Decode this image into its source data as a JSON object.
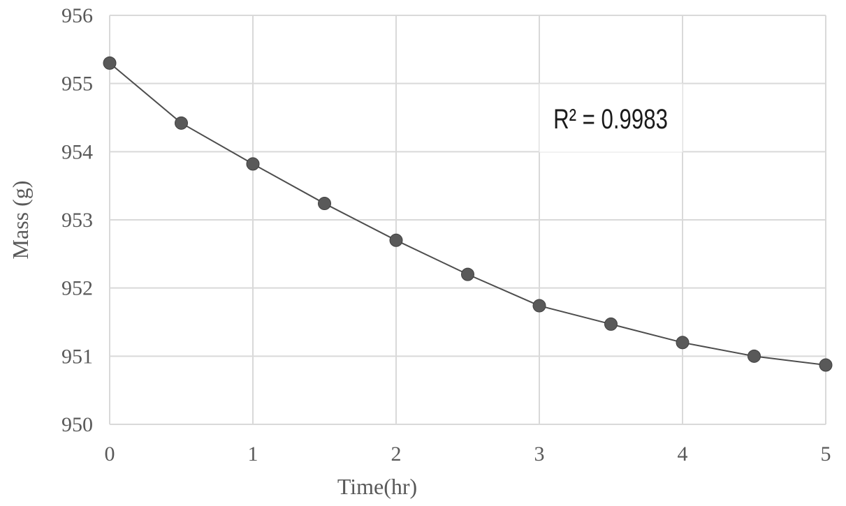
{
  "chart_data": {
    "type": "line",
    "xlabel": "Time(hr)",
    "ylabel": "Mass (g)",
    "xlim": [
      0,
      5
    ],
    "ylim": [
      950,
      956
    ],
    "x_ticks": [
      "0",
      "1",
      "2",
      "3",
      "4",
      "5"
    ],
    "y_ticks": [
      "950",
      "951",
      "952",
      "953",
      "954",
      "955",
      "956"
    ],
    "grid": true,
    "series": [
      {
        "x": [
          0,
          0.5,
          1,
          1.5,
          2,
          2.5,
          3,
          3.5,
          4,
          4.5,
          5
        ],
        "y": [
          955.3,
          954.42,
          953.82,
          953.24,
          952.7,
          952.2,
          951.74,
          951.47,
          951.2,
          951.0,
          950.87
        ],
        "color": "#595959"
      }
    ],
    "annotation": {
      "text": "R² = 0.9983"
    }
  }
}
